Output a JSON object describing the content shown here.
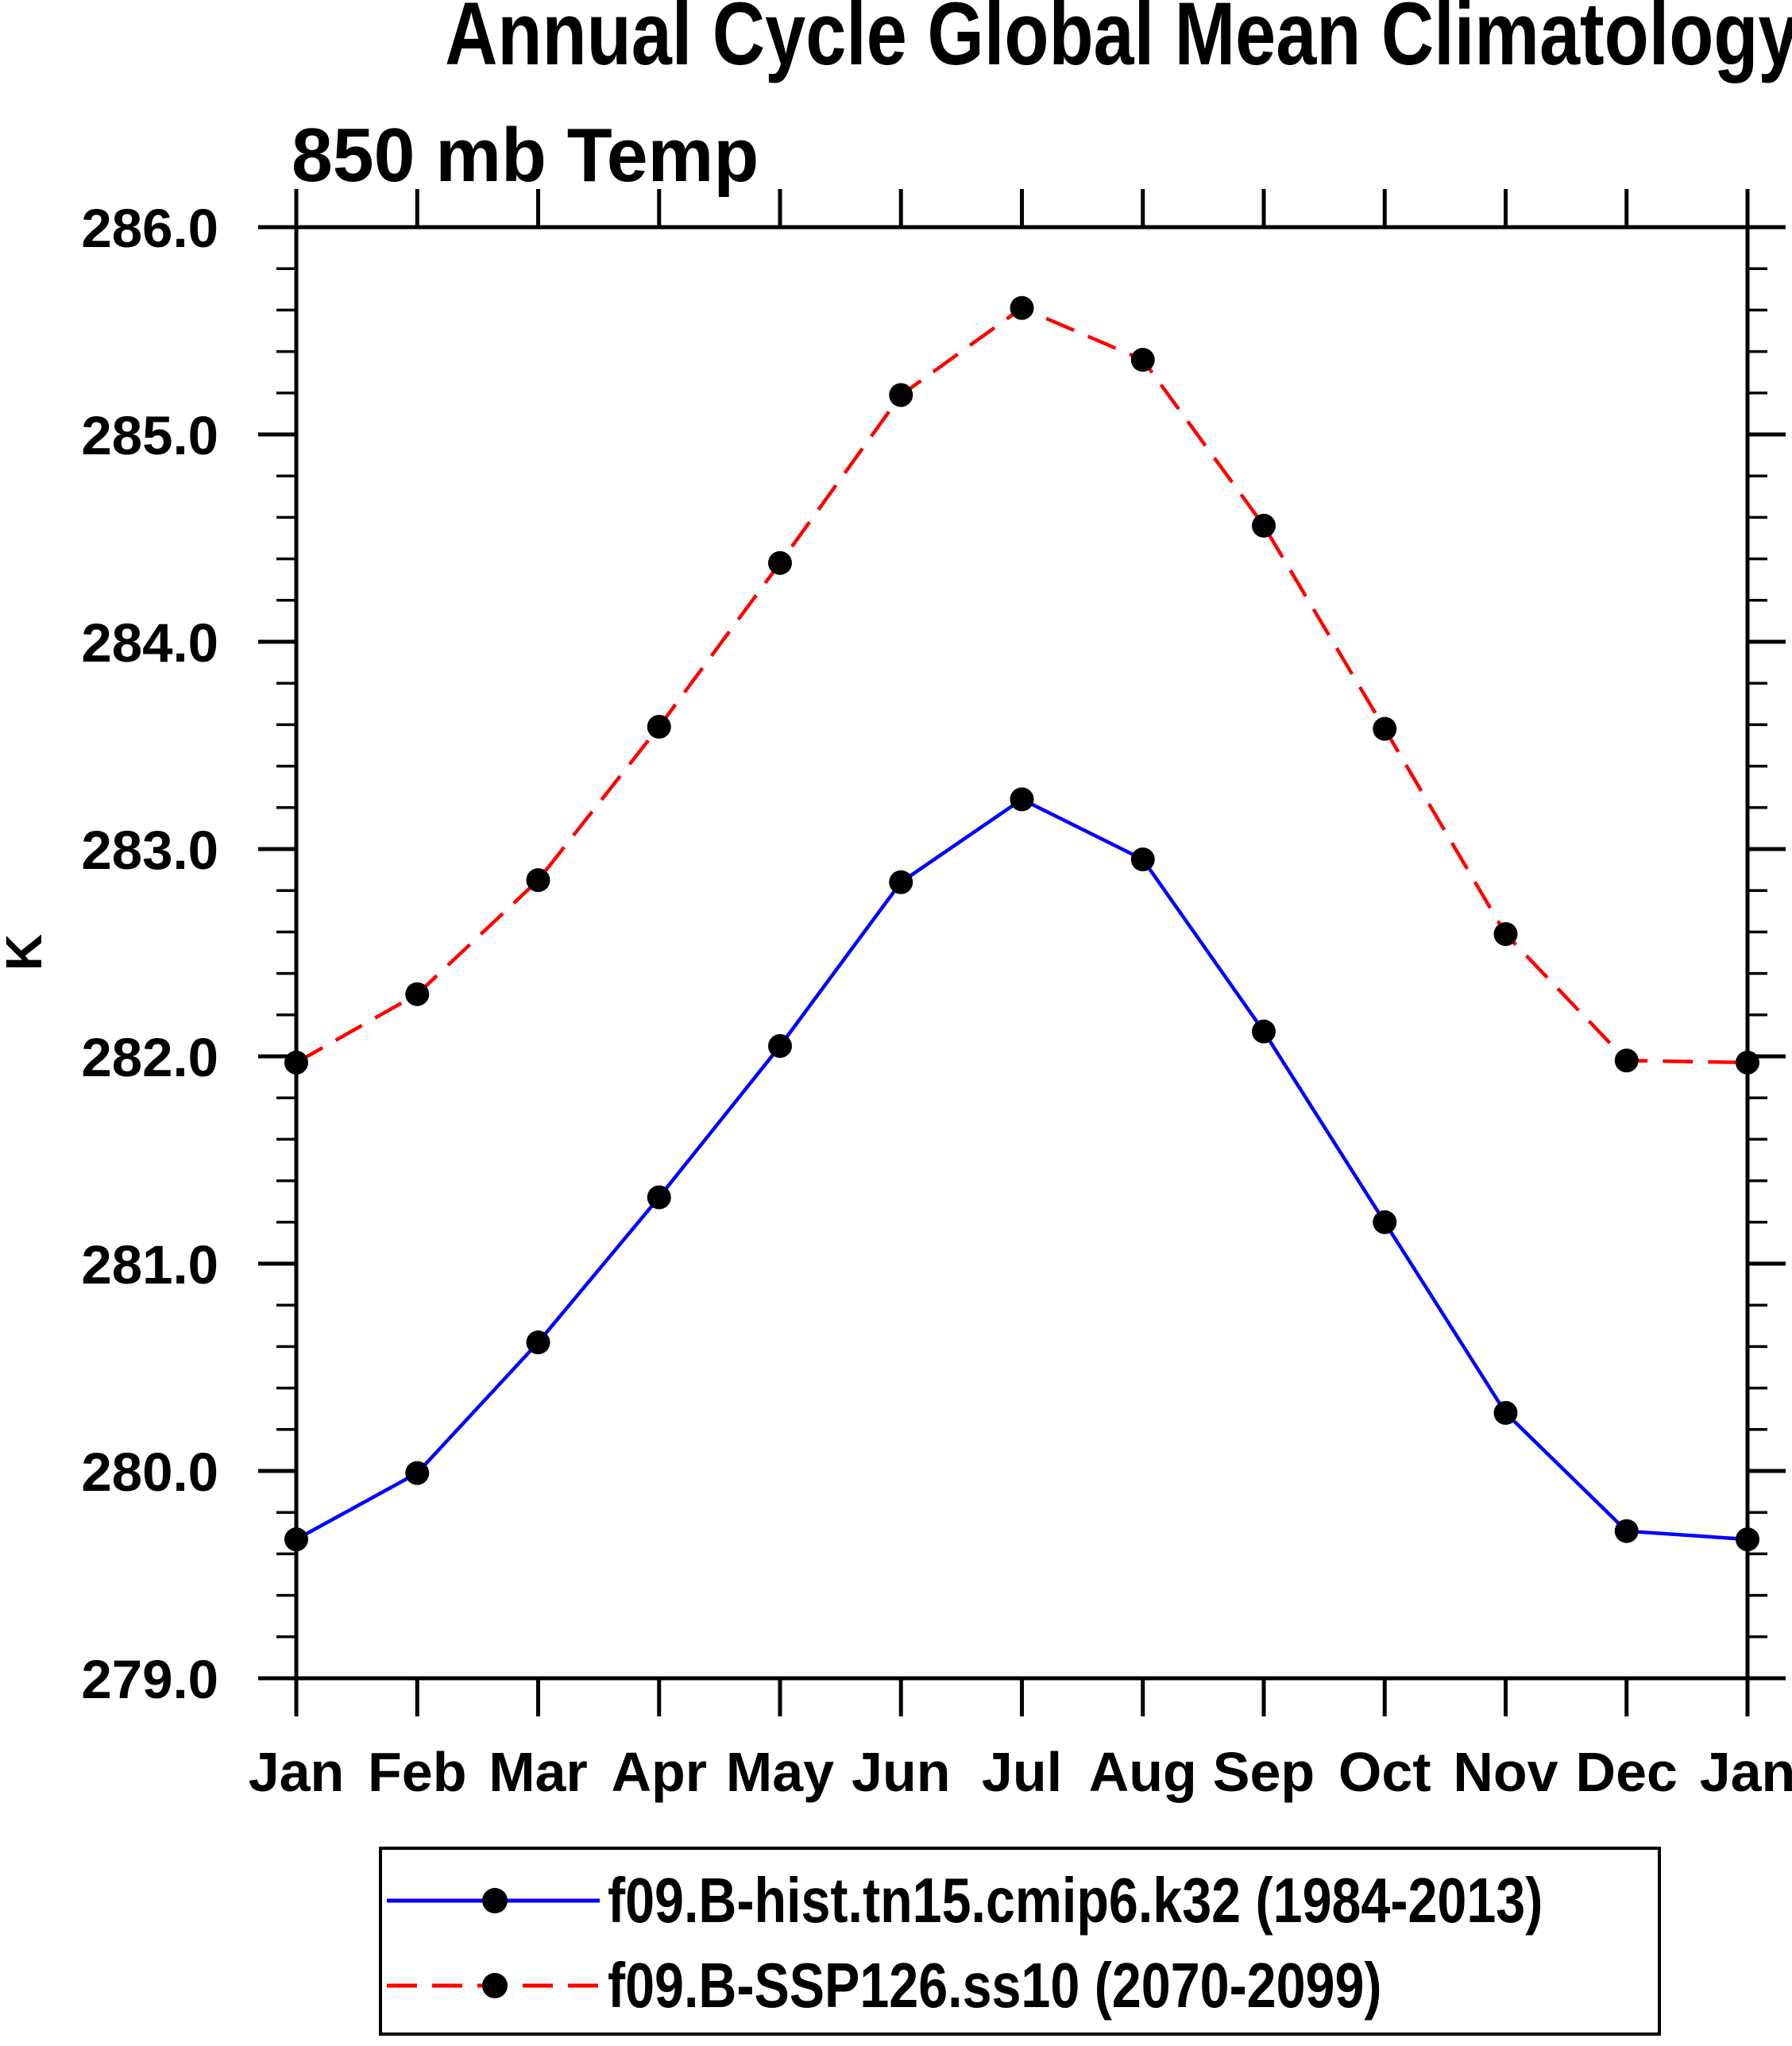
{
  "chart": {
    "title": "Annual Cycle Global Mean Climatology",
    "subtitle": "850 mb Temp",
    "y_axis": {
      "unit": "K",
      "min": 279.0,
      "max": 286.0,
      "major_step": 1.0,
      "minor_step": 0.2,
      "tick_labels": [
        "279.0",
        "280.0",
        "281.0",
        "282.0",
        "283.0",
        "284.0",
        "285.0",
        "286.0"
      ]
    },
    "x_axis": {
      "tick_labels": [
        "Jan",
        "Feb",
        "Mar",
        "Apr",
        "May",
        "Jun",
        "Jul",
        "Aug",
        "Sep",
        "Oct",
        "Nov",
        "Dec",
        "Jan"
      ]
    },
    "colors": {
      "hist_line": "#0000ff",
      "ssp_line": "#ff0000",
      "marker": "#000000",
      "axis": "#000000",
      "background": "#ffffff"
    }
  },
  "chart_data": {
    "type": "line",
    "title": "Annual Cycle Global Mean Climatology",
    "subtitle": "850 mb Temp",
    "ylabel": "K",
    "xlabel": "",
    "ylim": [
      279.0,
      286.0
    ],
    "y_major_tick_step": 1.0,
    "y_minor_tick_step": 0.2,
    "grid": false,
    "legend_position": "bottom",
    "categories": [
      "Jan",
      "Feb",
      "Mar",
      "Apr",
      "May",
      "Jun",
      "Jul",
      "Aug",
      "Sep",
      "Oct",
      "Nov",
      "Dec",
      "Jan"
    ],
    "series": [
      {
        "name": "f09.B-hist.tn15.cmip6.k32 (1984-2013)",
        "color": "#0000ff",
        "line_style": "solid",
        "marker": "filled-circle",
        "marker_color": "#000000",
        "values": [
          279.67,
          279.99,
          280.62,
          281.32,
          282.05,
          282.84,
          283.24,
          282.95,
          282.12,
          281.2,
          280.28,
          279.71,
          279.67
        ]
      },
      {
        "name": "f09.B-SSP126.ss10 (2070-2099)",
        "color": "#ff0000",
        "line_style": "dashed",
        "marker": "filled-circle",
        "marker_color": "#000000",
        "values": [
          281.97,
          282.3,
          282.85,
          283.59,
          284.38,
          285.19,
          285.61,
          285.36,
          284.56,
          283.58,
          282.59,
          281.98,
          281.97
        ]
      }
    ]
  }
}
